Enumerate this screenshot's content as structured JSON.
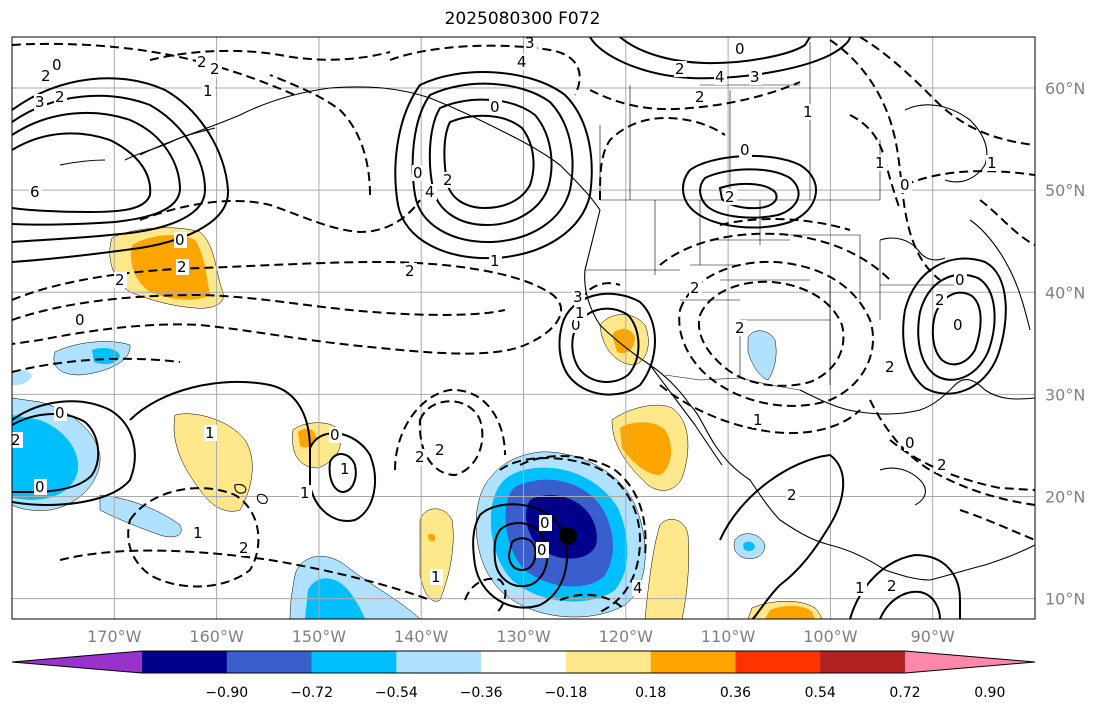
{
  "title": "2025080300 F072",
  "map": {
    "lat_labels": [
      "60°N",
      "50°N",
      "40°N",
      "30°N",
      "20°N",
      "10°N"
    ],
    "lon_labels": [
      "170°W",
      "160°W",
      "150°W",
      "140°W",
      "130°W",
      "120°W",
      "110°W",
      "100°W",
      "90°W"
    ],
    "extent": {
      "lon_min": -180,
      "lon_max": -80,
      "lat_min": 8,
      "lat_max": 65
    },
    "grid": true
  },
  "colorbar": {
    "labels": [
      "−0.90",
      "−0.72",
      "−0.54",
      "−0.36",
      "−0.18",
      "0.18",
      "0.36",
      "0.54",
      "0.72",
      "0.90"
    ],
    "colors": [
      "#9932cc",
      "#00008b",
      "#3a5fcd",
      "#00bfff",
      "#b0e2ff",
      "#ffffff",
      "#ffe88c",
      "#ffa500",
      "#ff3300",
      "#b22222",
      "#ff88aa"
    ],
    "extend": "both"
  },
  "contour_labels": [
    "0",
    "2",
    "2",
    "3",
    "4",
    "6",
    "0",
    "2",
    "2",
    "0",
    "2",
    "1",
    "2",
    "3",
    "4",
    "0",
    "2",
    "4",
    "3",
    "2",
    "1",
    "0",
    "2",
    "0",
    "4",
    "1",
    "2",
    "3",
    "0",
    "1",
    "2",
    "2",
    "0",
    "2",
    "1",
    "0",
    "2",
    "0",
    "2",
    "0",
    "2",
    "1",
    "0",
    "1",
    "2",
    "0",
    "1",
    "0",
    "1",
    "2",
    "1",
    "0",
    "1",
    "2",
    "2",
    "1",
    "0",
    "0",
    "4",
    "2",
    "1",
    "2"
  ]
}
